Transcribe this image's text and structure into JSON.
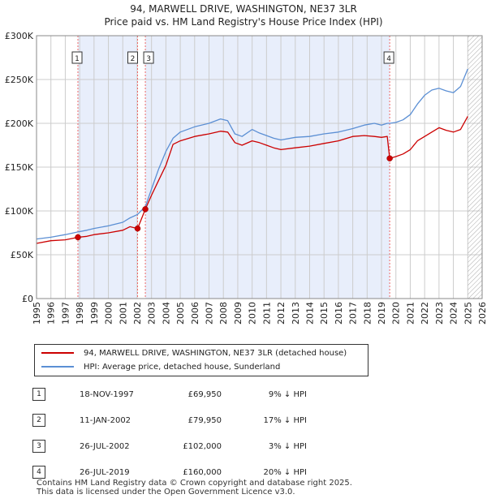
{
  "header": {
    "title": "94, MARWELL DRIVE, WASHINGTON, NE37 3LR",
    "subtitle": "Price paid vs. HM Land Registry's House Price Index (HPI)"
  },
  "colors": {
    "price_line": "#cc0000",
    "hpi_line": "#5b8fd4",
    "shade": "#e8eefb",
    "marker_line": "#ee6666",
    "grid": "#cccccc",
    "hatch": "#aaaaaa"
  },
  "chart_data": {
    "type": "line",
    "title": "94, MARWELL DRIVE, WASHINGTON, NE37 3LR",
    "subtitle": "Price paid vs. HM Land Registry's House Price Index (HPI)",
    "xlabel": "",
    "ylabel": "",
    "xlim": [
      1995,
      2026
    ],
    "ylim": [
      0,
      300000
    ],
    "grid": true,
    "x_ticks": [
      1995,
      1996,
      1997,
      1998,
      1999,
      2000,
      2001,
      2002,
      2003,
      2004,
      2005,
      2006,
      2007,
      2008,
      2009,
      2010,
      2011,
      2012,
      2013,
      2014,
      2015,
      2016,
      2017,
      2018,
      2019,
      2020,
      2021,
      2022,
      2023,
      2024,
      2025,
      2026
    ],
    "y_ticks": [
      {
        "value": 0,
        "label": "£0"
      },
      {
        "value": 50000,
        "label": "£50K"
      },
      {
        "value": 100000,
        "label": "£100K"
      },
      {
        "value": 150000,
        "label": "£150K"
      },
      {
        "value": 200000,
        "label": "£200K"
      },
      {
        "value": 250000,
        "label": "£250K"
      },
      {
        "value": 300000,
        "label": "£300K"
      }
    ],
    "shaded_ranges": [
      [
        1997.88,
        2002.03
      ],
      [
        2002.57,
        2019.57
      ]
    ],
    "forecast_start": 2025.0,
    "series": [
      {
        "name": "94, MARWELL DRIVE, WASHINGTON, NE37 3LR (detached house)",
        "key": "price",
        "x": [
          1995.0,
          1996.0,
          1997.0,
          1997.88,
          1998.5,
          1999.0,
          2000.0,
          2001.0,
          2001.5,
          2002.03,
          2002.57,
          2003.0,
          2003.5,
          2004.0,
          2004.5,
          2005.0,
          2006.0,
          2007.0,
          2007.8,
          2008.3,
          2008.8,
          2009.3,
          2010.0,
          2010.5,
          2011.0,
          2011.5,
          2012.0,
          2013.0,
          2014.0,
          2015.0,
          2016.0,
          2017.0,
          2017.8,
          2018.5,
          2019.0,
          2019.4,
          2019.57,
          2020.0,
          2020.5,
          2021.0,
          2021.5,
          2022.0,
          2022.5,
          2023.0,
          2023.5,
          2024.0,
          2024.5,
          2025.0
        ],
        "y": [
          63000,
          66000,
          67000,
          69950,
          71000,
          73000,
          75000,
          78000,
          82000,
          79950,
          102000,
          118000,
          135000,
          152000,
          176000,
          180000,
          185000,
          188000,
          191000,
          190000,
          178000,
          175000,
          180000,
          178000,
          175000,
          172000,
          170000,
          172000,
          174000,
          177000,
          180000,
          185000,
          186000,
          185000,
          184000,
          185000,
          160000,
          162000,
          165000,
          170000,
          180000,
          185000,
          190000,
          195000,
          192000,
          190000,
          193000,
          208000
        ]
      },
      {
        "name": "HPI: Average price, detached house, Sunderland",
        "key": "hpi",
        "x": [
          1995.0,
          1996.0,
          1997.0,
          1997.88,
          1998.5,
          1999.0,
          2000.0,
          2001.0,
          2001.5,
          2002.03,
          2002.57,
          2003.0,
          2003.5,
          2004.0,
          2004.5,
          2005.0,
          2006.0,
          2007.0,
          2007.8,
          2008.3,
          2008.8,
          2009.3,
          2010.0,
          2010.5,
          2011.0,
          2011.5,
          2012.0,
          2013.0,
          2014.0,
          2015.0,
          2016.0,
          2017.0,
          2017.8,
          2018.5,
          2019.0,
          2019.4,
          2019.57,
          2020.0,
          2020.5,
          2021.0,
          2021.5,
          2022.0,
          2022.5,
          2023.0,
          2023.5,
          2024.0,
          2024.5,
          2025.0
        ],
        "y": [
          68000,
          70000,
          73000,
          76000,
          78000,
          80000,
          83000,
          87000,
          92000,
          96000,
          105000,
          125000,
          148000,
          168000,
          183000,
          190000,
          196000,
          200000,
          205000,
          203000,
          188000,
          185000,
          193000,
          189000,
          186000,
          183000,
          181000,
          184000,
          185000,
          188000,
          190000,
          194000,
          198000,
          200000,
          198000,
          200000,
          200000,
          201000,
          204000,
          210000,
          222000,
          232000,
          238000,
          240000,
          237000,
          235000,
          242000,
          262000
        ]
      }
    ],
    "sales": [
      {
        "id": "1",
        "x": 1997.88,
        "price": 69950
      },
      {
        "id": "2",
        "x": 2002.03,
        "price": 79950
      },
      {
        "id": "3",
        "x": 2002.57,
        "price": 102000
      },
      {
        "id": "4",
        "x": 2019.57,
        "price": 160000
      }
    ]
  },
  "legend": {
    "price_label": "94, MARWELL DRIVE, WASHINGTON, NE37 3LR (detached house)",
    "hpi_label": "HPI: Average price, detached house, Sunderland"
  },
  "transactions": [
    {
      "id": "1",
      "date": "18-NOV-1997",
      "price": "£69,950",
      "hpi": "9% ↓ HPI"
    },
    {
      "id": "2",
      "date": "11-JAN-2002",
      "price": "£79,950",
      "hpi": "17% ↓ HPI"
    },
    {
      "id": "3",
      "date": "26-JUL-2002",
      "price": "£102,000",
      "hpi": "3% ↓ HPI"
    },
    {
      "id": "4",
      "date": "26-JUL-2019",
      "price": "£160,000",
      "hpi": "20% ↓ HPI"
    }
  ],
  "footer": {
    "line1": "Contains HM Land Registry data © Crown copyright and database right 2025.",
    "line2": "This data is licensed under the Open Government Licence v3.0."
  }
}
